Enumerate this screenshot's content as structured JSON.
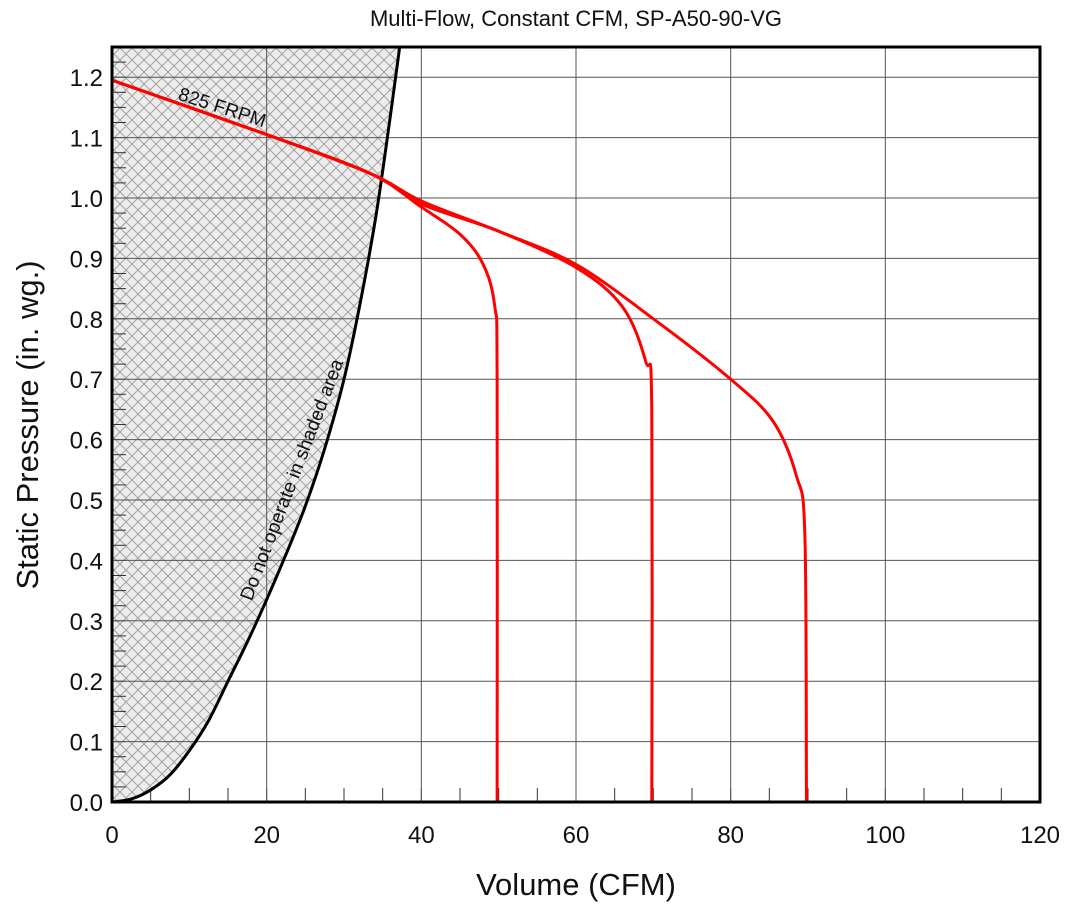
{
  "chart_data": {
    "type": "line",
    "title": "Multi-Flow, Constant CFM, SP-A50-90-VG",
    "xlabel": "Volume (CFM)",
    "ylabel": "Static Pressure (in. wg.)",
    "xlim": [
      0,
      120
    ],
    "ylim": [
      0,
      1.25
    ],
    "x_ticks": [
      0,
      20,
      40,
      60,
      80,
      100,
      120
    ],
    "x_tick_labels": [
      "0",
      "20",
      "40",
      "60",
      "80",
      "100",
      "120"
    ],
    "y_ticks": [
      0,
      0.1,
      0.2,
      0.3,
      0.4,
      0.5,
      0.6,
      0.7,
      0.8,
      0.9,
      1.0,
      1.1,
      1.2
    ],
    "y_tick_labels": [
      "0.0",
      "0.1",
      "0.2",
      "0.3",
      "0.4",
      "0.5",
      "0.6",
      "0.7",
      "0.8",
      "0.9",
      "1.0",
      "1.1",
      "1.2"
    ],
    "grid": true,
    "series": [
      {
        "points": [
          [
            0,
            1.195
          ],
          [
            20,
            1.105
          ],
          [
            33.5,
            1.04
          ],
          [
            40,
            0.985
          ],
          [
            45,
            0.94
          ],
          [
            48,
            0.89
          ],
          [
            49.5,
            0.82
          ],
          [
            49.8,
            0.7
          ],
          [
            49.8,
            0.0
          ]
        ]
      },
      {
        "points": [
          [
            0,
            1.195
          ],
          [
            20,
            1.105
          ],
          [
            33.5,
            1.04
          ],
          [
            40,
            0.99
          ],
          [
            50,
            0.945
          ],
          [
            60,
            0.885
          ],
          [
            66,
            0.82
          ],
          [
            69,
            0.73
          ],
          [
            69.8,
            0.65
          ],
          [
            69.8,
            0.0
          ]
        ]
      },
      {
        "points": [
          [
            0,
            1.195
          ],
          [
            20,
            1.105
          ],
          [
            33.5,
            1.04
          ],
          [
            40,
            0.995
          ],
          [
            50,
            0.945
          ],
          [
            60,
            0.89
          ],
          [
            70,
            0.8
          ],
          [
            80,
            0.7
          ],
          [
            85.5,
            0.63
          ],
          [
            88.5,
            0.54
          ],
          [
            89.6,
            0.44
          ],
          [
            89.8,
            0.0
          ]
        ]
      }
    ],
    "boundary": {
      "points": [
        [
          0,
          0.0
        ],
        [
          2.5,
          0.005
        ],
        [
          5,
          0.02
        ],
        [
          7.5,
          0.045
        ],
        [
          10,
          0.085
        ],
        [
          12.5,
          0.135
        ],
        [
          15,
          0.2
        ],
        [
          17.5,
          0.265
        ],
        [
          20,
          0.335
        ],
        [
          22.5,
          0.41
        ],
        [
          25,
          0.49
        ],
        [
          27.5,
          0.585
        ],
        [
          30,
          0.7
        ],
        [
          32,
          0.82
        ],
        [
          34,
          0.96
        ],
        [
          35.5,
          1.09
        ],
        [
          37.2,
          1.25
        ]
      ]
    },
    "annotations": [
      {
        "text": "825 FRPM",
        "x": 14,
        "y": 1.14
      },
      {
        "text": "Do not operate in shaded area",
        "x": 24,
        "y": 0.53
      }
    ],
    "colors": {
      "series": "#ff0000",
      "boundary": "#000000",
      "grid": "#555555",
      "hatch": "#9a9a9a",
      "hatch_bg": "#ececec"
    }
  }
}
